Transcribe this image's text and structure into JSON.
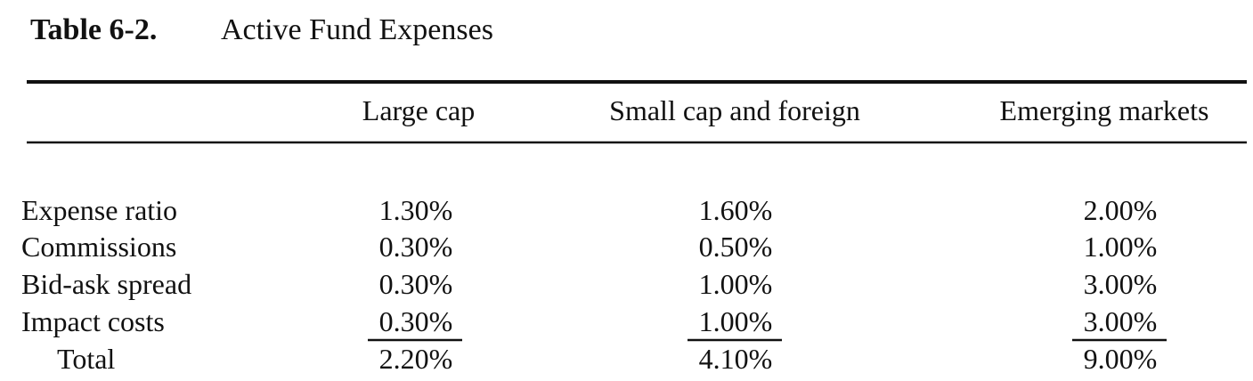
{
  "title": {
    "label": "Table 6-2.",
    "text": "Active Fund Expenses"
  },
  "table": {
    "columns": [
      "Large cap",
      "Small cap and foreign",
      "Emerging markets"
    ],
    "rows": [
      [
        "Expense ratio",
        "1.30%",
        "1.60%",
        "2.00%"
      ],
      [
        "Commissions",
        "0.30%",
        "0.50%",
        "1.00%"
      ],
      [
        "Bid-ask spread",
        "0.30%",
        "1.00%",
        "3.00%"
      ],
      [
        "Impact costs",
        "0.30%",
        "1.00%",
        "3.00%"
      ],
      [
        "Total",
        "2.20%",
        "4.10%",
        "9.00%"
      ]
    ]
  }
}
